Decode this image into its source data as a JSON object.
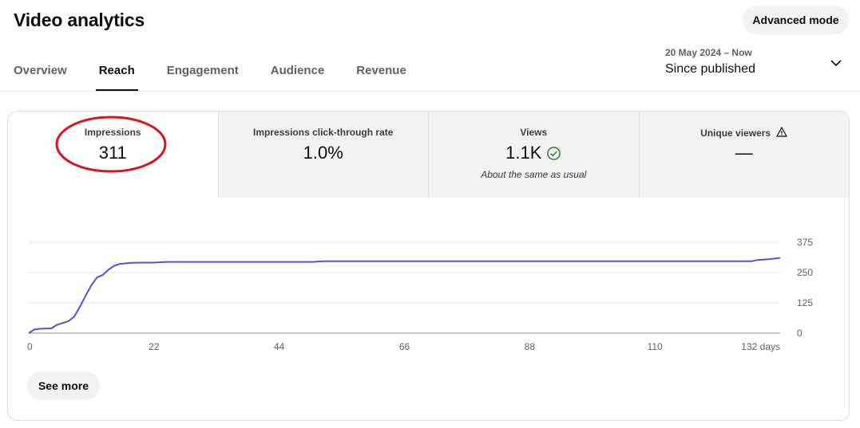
{
  "header": {
    "title": "Video analytics",
    "advanced_mode_label": "Advanced mode"
  },
  "tabs": [
    {
      "label": "Overview",
      "active": false
    },
    {
      "label": "Reach",
      "active": true
    },
    {
      "label": "Engagement",
      "active": false
    },
    {
      "label": "Audience",
      "active": false
    },
    {
      "label": "Revenue",
      "active": false
    }
  ],
  "date_range": {
    "range": "20 May 2024 – Now",
    "period": "Since published"
  },
  "metrics": [
    {
      "label": "Impressions",
      "value": "311",
      "selected": true
    },
    {
      "label": "Impressions click-through rate",
      "value": "1.0%"
    },
    {
      "label": "Views",
      "value": "1.1K",
      "note": "About the same as usual",
      "status_icon": "check-circle-icon"
    },
    {
      "label": "Unique viewers",
      "value": "—",
      "status_icon": "warning-icon"
    }
  ],
  "see_more_label": "See more",
  "colors": {
    "line": "#5b4fcf",
    "accent": "#0f0f0f",
    "annotation": "#d9141a"
  },
  "chart_data": {
    "type": "line",
    "x_ticks": [
      "0",
      "22",
      "44",
      "66",
      "88",
      "110",
      "132 days"
    ],
    "y_ticks": [
      "375",
      "250",
      "125",
      "0"
    ],
    "xlim": [
      0,
      132
    ],
    "ylim": [
      0,
      375
    ],
    "grid": true,
    "series": [
      {
        "x": [
          0,
          1,
          2,
          4,
          5,
          6,
          7,
          8,
          9,
          10,
          11,
          12,
          13,
          14,
          15,
          16,
          18,
          20,
          22,
          24,
          30,
          40,
          50,
          51,
          52,
          60,
          80,
          100,
          120,
          127,
          128,
          130,
          132
        ],
        "y": [
          0,
          15,
          18,
          20,
          35,
          42,
          50,
          68,
          110,
          155,
          198,
          230,
          240,
          262,
          278,
          286,
          290,
          291,
          291,
          294,
          294,
          294,
          294,
          296,
          297,
          297,
          297,
          297,
          297,
          297,
          302,
          305,
          311
        ]
      }
    ]
  }
}
